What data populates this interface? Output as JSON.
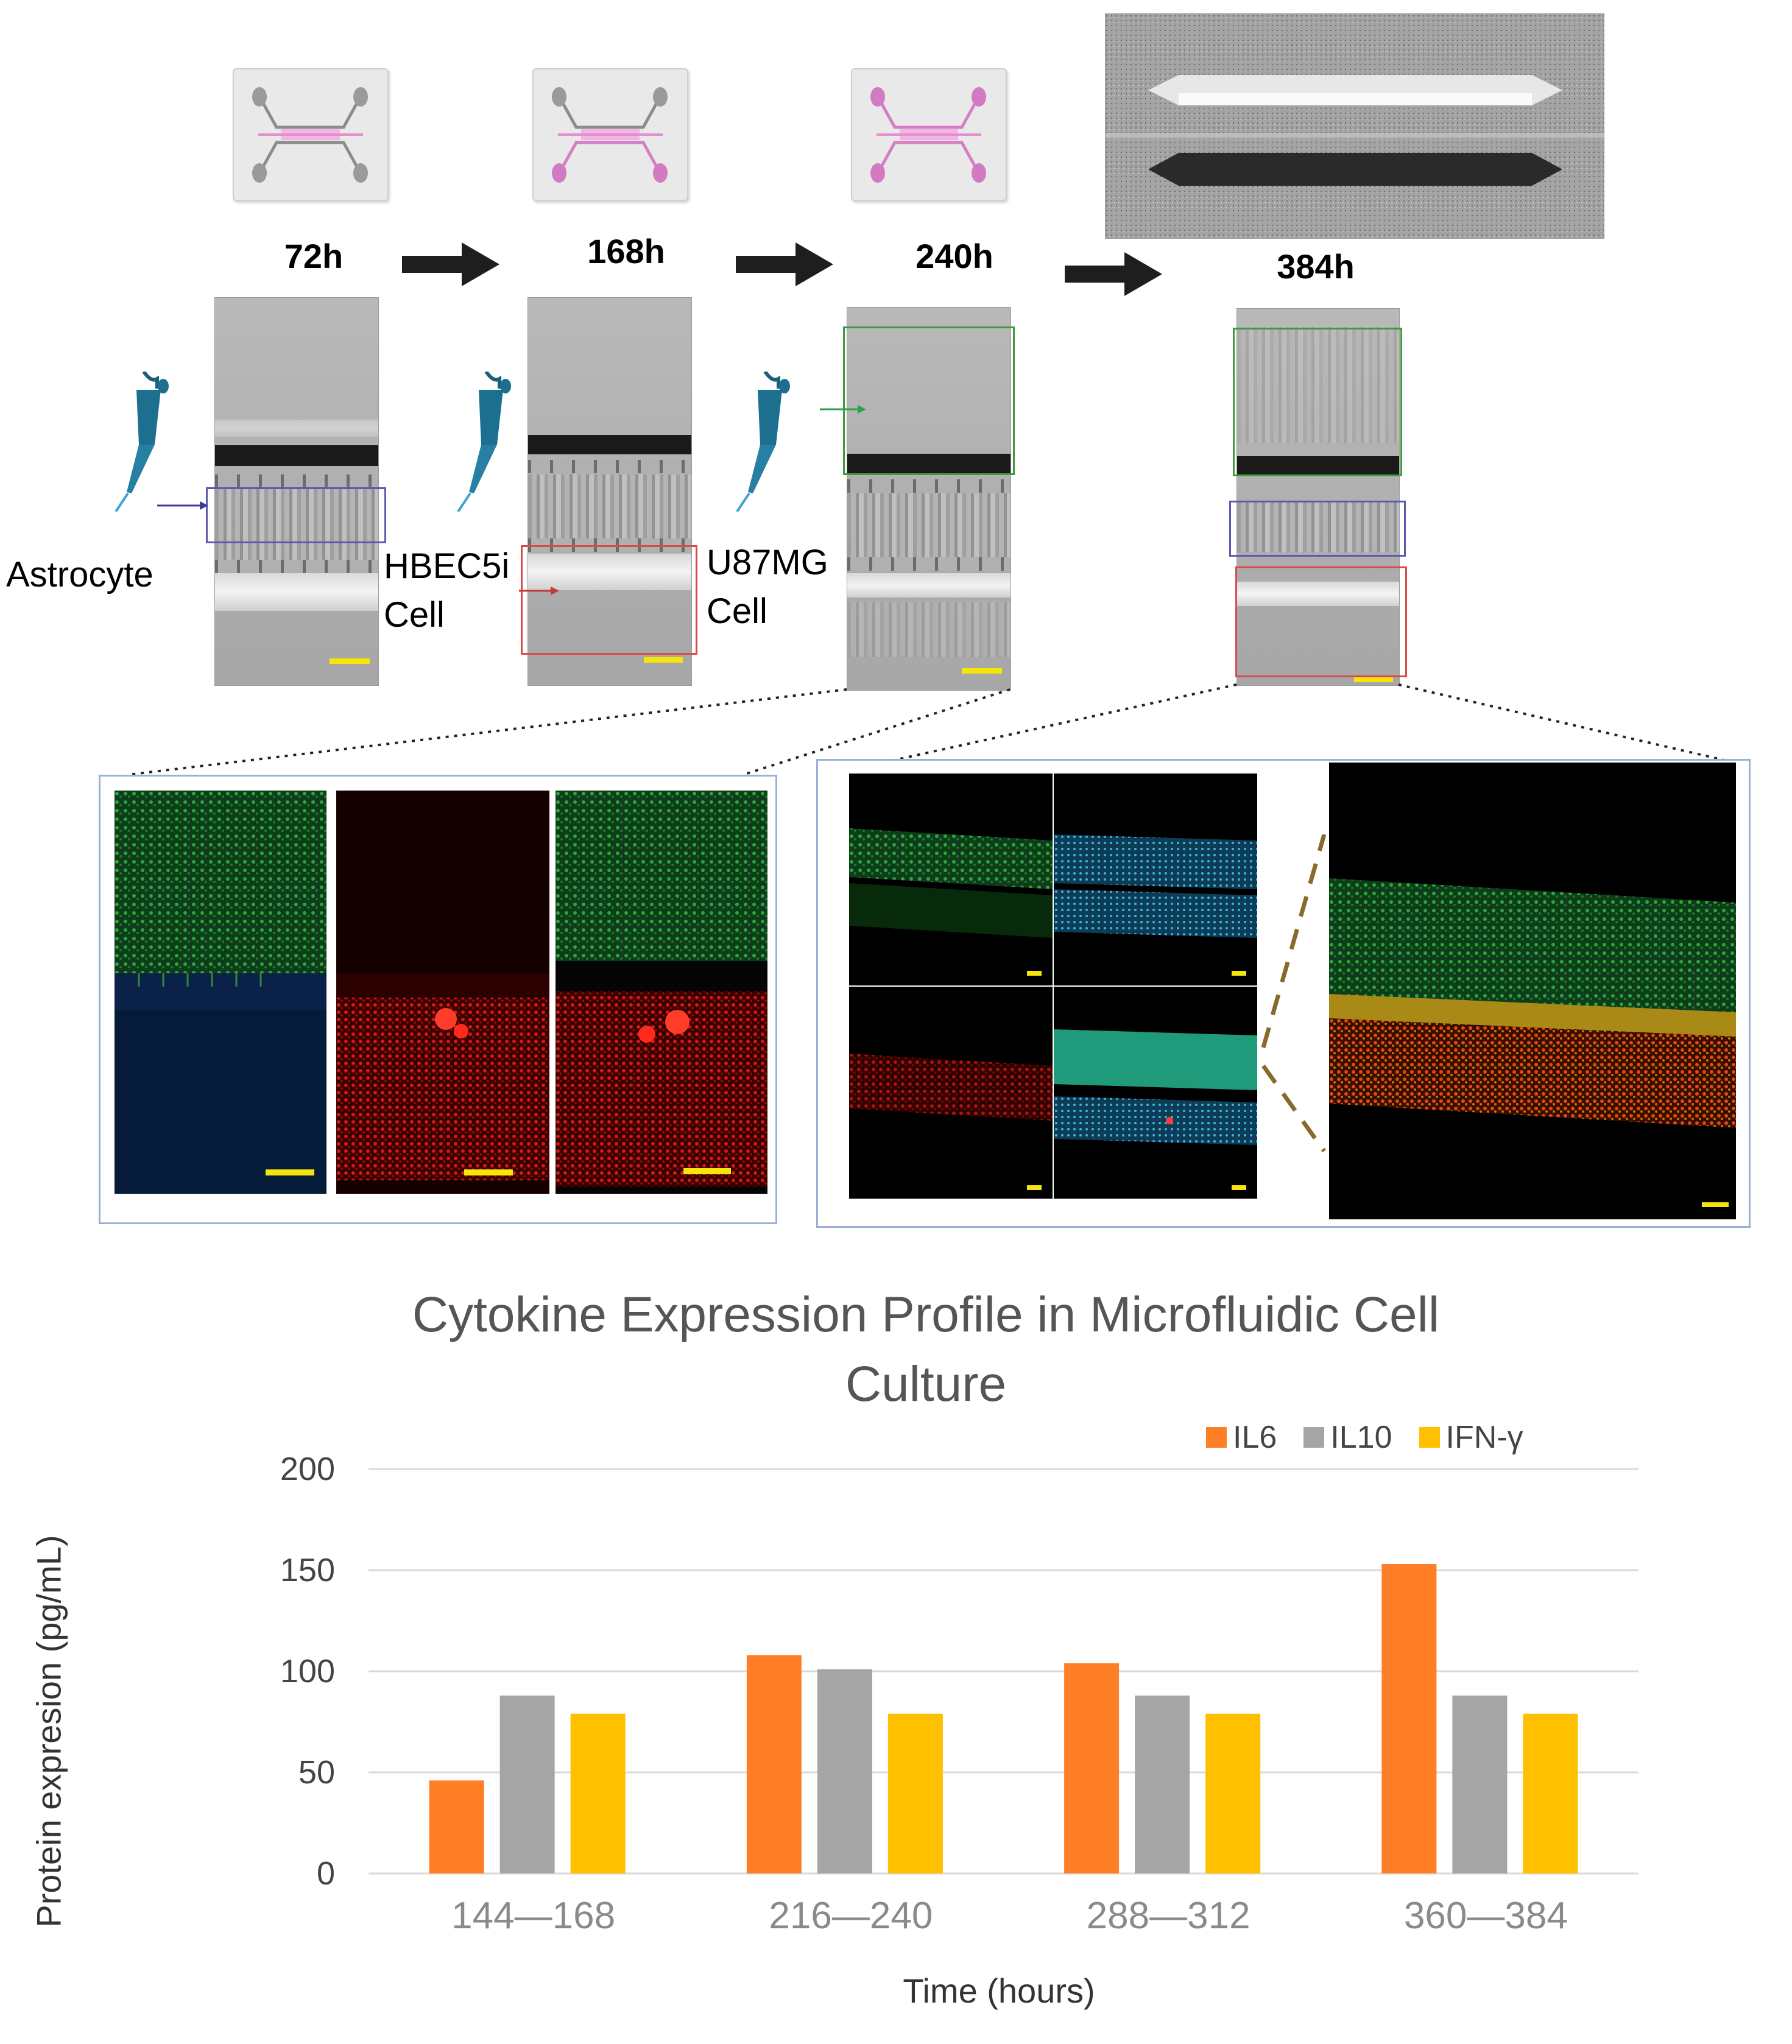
{
  "timeline": {
    "timepoints": [
      "72h",
      "168h",
      "240h",
      "384h"
    ],
    "seeding_labels": {
      "astrocyte": "Astrocyte",
      "hbec_line1": "HBEC5i",
      "hbec_line2": "Cell",
      "u87_line1": "U87MG",
      "u87_line2": "Cell"
    },
    "roi_colors": {
      "astrocyte_channel": "#3b3b9c",
      "hbec_channel": "#d94a4a",
      "u87_channel": "#3f9a3f"
    }
  },
  "chart_data": {
    "type": "bar",
    "title": "Cytokine Expression Profile in Microfluidic Cell Culture",
    "title_line1": "Cytokine Expression Profile in Microfluidic Cell",
    "title_line2": "Culture",
    "xlabel": "Time (hours)",
    "ylabel": "Protein expresion (pg/mL)",
    "categories": [
      "144—168",
      "216—240",
      "288—312",
      "360—384"
    ],
    "series": [
      {
        "name": "IL6",
        "color": "#ff7f27",
        "values": [
          46,
          108,
          104,
          153
        ]
      },
      {
        "name": "IL10",
        "color": "#a5a5a5",
        "values": [
          88,
          101,
          88,
          88
        ]
      },
      {
        "name": "IFN-γ",
        "color": "#ffc000",
        "values": [
          79,
          79,
          79,
          79
        ]
      }
    ],
    "ylim": [
      0,
      200
    ],
    "yticks": [
      "0",
      "50",
      "100",
      "150",
      "200"
    ],
    "grid": true,
    "legend_position": "top-right"
  }
}
